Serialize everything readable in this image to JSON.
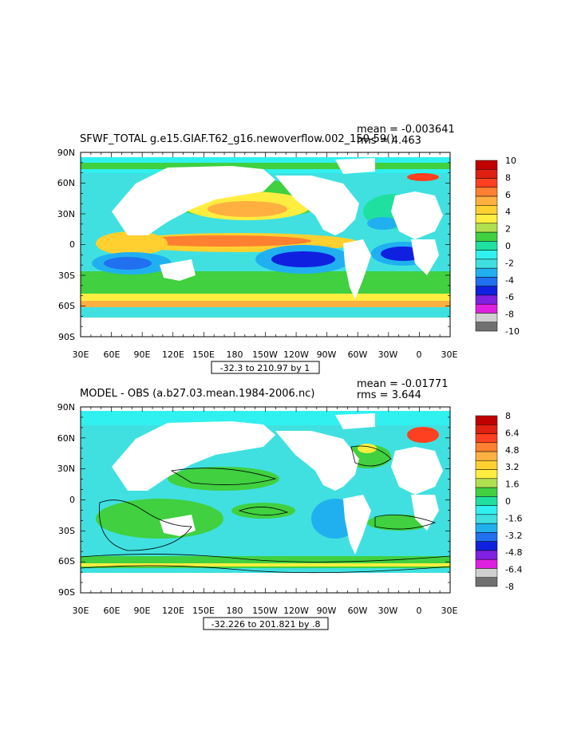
{
  "panels": [
    {
      "title_left": "SFWF_TOTAL g.e15.GIAF.T62_g16.newoverflow.002_150-59()",
      "mean_text": "mean = -0.003641",
      "rms_text": "rms = 4.463",
      "range_text": "-32.3 to 210.97 by 1",
      "lat_labels": [
        "90N",
        "60N",
        "30N",
        "0",
        "30S",
        "60S",
        "90S"
      ],
      "lon_labels": [
        "30E",
        "60E",
        "90E",
        "120E",
        "150E",
        "180",
        "150W",
        "120W",
        "90W",
        "60W",
        "30W",
        "0",
        "30E"
      ],
      "colorbar_labels": [
        "10",
        "8",
        "6",
        "4",
        "2",
        "0",
        "-2",
        "-4",
        "-6",
        "-8",
        "-10"
      ],
      "contours": false
    },
    {
      "title_left": "MODEL - OBS (a.b27.03.mean.1984-2006.nc)",
      "mean_text": "mean = -0.01771",
      "rms_text": "rms = 3.644",
      "range_text": "-32.226 to 201.821 by .8",
      "lat_labels": [
        "90N",
        "60N",
        "30N",
        "0",
        "30S",
        "60S",
        "90S"
      ],
      "lon_labels": [
        "30E",
        "60E",
        "90E",
        "120E",
        "150E",
        "180",
        "150W",
        "120W",
        "90W",
        "60W",
        "30W",
        "0",
        "30E"
      ],
      "colorbar_labels": [
        "8",
        "6.4",
        "4.8",
        "3.2",
        "1.6",
        "0",
        "-1.6",
        "-3.2",
        "-4.8",
        "-6.4",
        "-8"
      ],
      "contours": true
    }
  ],
  "colors": {
    "palette": [
      "#c00000",
      "#e02010",
      "#ff4020",
      "#ff8030",
      "#ffb040",
      "#ffd030",
      "#ffee40",
      "#b0e050",
      "#40d040",
      "#20e0a0",
      "#30f0f0",
      "#40e0e0",
      "#20b0f0",
      "#2070f0",
      "#1020e0",
      "#8020e0",
      "#e020e0",
      "#d0d0d0",
      "#707070"
    ],
    "colorbar_1": [
      "#c00000",
      "#e02010",
      "#ff4020",
      "#ff8030",
      "#ffb040",
      "#ffd030",
      "#ffee40",
      "#b0e050",
      "#40d040",
      "#20e0a0",
      "#30f0f0",
      "#40e0e0",
      "#20b0f0",
      "#2070f0",
      "#1020e0",
      "#8020e0",
      "#e020e0",
      "#d0d0d0",
      "#707070"
    ],
    "colorbar_2": [
      "#c00000",
      "#e02010",
      "#ff4020",
      "#ff8030",
      "#ffb040",
      "#ffd030",
      "#ffee40",
      "#b0e050",
      "#40d040",
      "#20e0a0",
      "#30f0f0",
      "#40e0e0",
      "#20b0f0",
      "#2070f0",
      "#1020e0",
      "#8020e0",
      "#e020e0",
      "#d0d0d0",
      "#707070"
    ]
  }
}
